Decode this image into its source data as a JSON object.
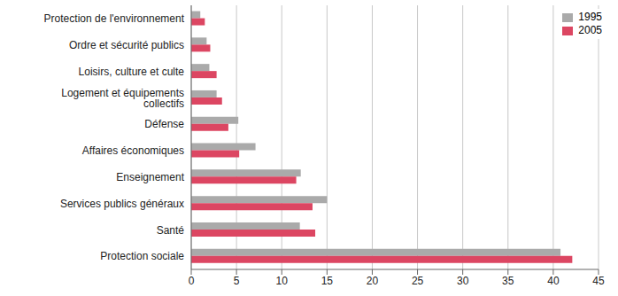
{
  "chart_data": {
    "type": "bar",
    "orientation": "horizontal",
    "categories": [
      "Protection de l'environnement",
      "Ordre et sécurité publics",
      "Loisirs, culture et culte",
      "Logement et équipements collectifs",
      "Défense",
      "Affaires économiques",
      "Enseignement",
      "Services publics généraux",
      "Santé",
      "Protection sociale"
    ],
    "series": [
      {
        "name": "1995",
        "color": "#aaaaaa",
        "values": [
          1.0,
          1.7,
          2.0,
          2.8,
          5.2,
          7.1,
          12.1,
          15.0,
          12.0,
          40.8
        ]
      },
      {
        "name": "2005",
        "color": "#dc4662",
        "values": [
          1.5,
          2.1,
          2.8,
          3.4,
          4.1,
          5.3,
          11.6,
          13.4,
          13.7,
          42.1
        ]
      }
    ],
    "xlim": [
      0,
      45
    ],
    "xticks": [
      0,
      5,
      10,
      15,
      20,
      25,
      30,
      35,
      40,
      45
    ],
    "grid": true,
    "legend": "upper right"
  }
}
